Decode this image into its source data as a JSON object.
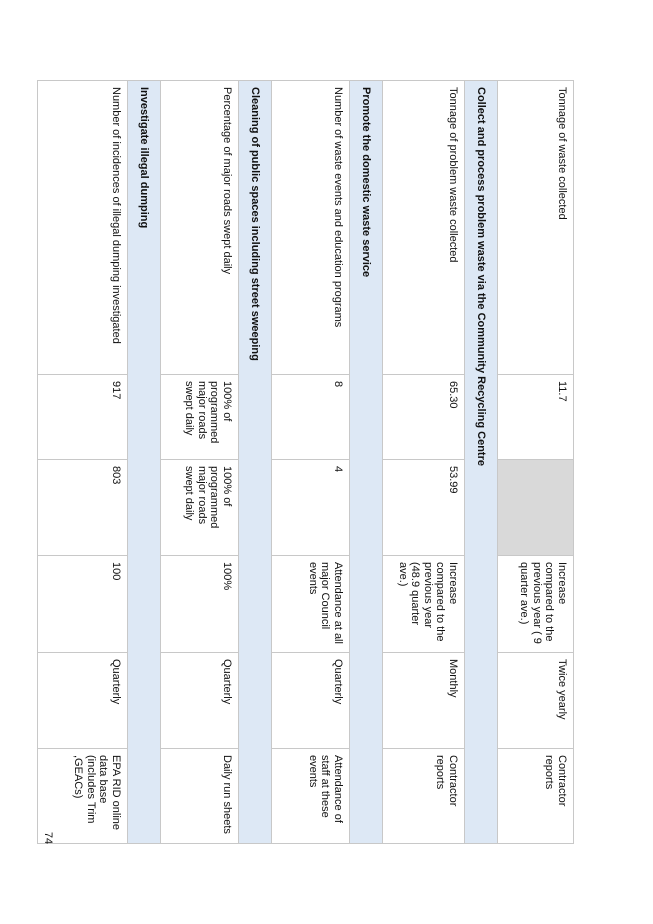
{
  "page_number": "74",
  "rows": [
    {
      "type": "data",
      "measure": "Tonnage of waste collected",
      "col1": "11.7",
      "col2": "",
      "col2_grey": true,
      "target": "Increase compared to the previous year ( 9 quarter ave.)",
      "frequency": "Twice yearly",
      "source": "Contractor reports"
    },
    {
      "type": "section",
      "title": "Collect and process problem waste via the Community Recycling Centre"
    },
    {
      "type": "data",
      "measure": "Tonnage of problem waste collected",
      "col1": "65.30",
      "col2": "53.99",
      "target": "Increase compared to the previous year (48.9 quarter ave.)",
      "frequency": "Monthly",
      "source": "Contractor reports"
    },
    {
      "type": "section",
      "title": "Promote the domestic waste service"
    },
    {
      "type": "data",
      "measure": "Number of waste events and education programs",
      "col1": "8",
      "col2": "4",
      "target": "Attendance at all major Council events",
      "frequency": "Quarterly",
      "source": "Attendance of staff at these events"
    },
    {
      "type": "section",
      "title": "Cleaning of public spaces including street sweeping"
    },
    {
      "type": "data",
      "measure": "Percentage of major roads swept daily",
      "col1": "100% of programmed major roads swept daily",
      "col2": "100% of programmed major roads swept daily",
      "target": "100%",
      "frequency": "Quarterly",
      "source": "Daily run sheets"
    },
    {
      "type": "section",
      "title": "Investigate illegal dumping"
    },
    {
      "type": "data",
      "measure": "Number of incidences of illegal dumping investigated",
      "col1": "917",
      "col2": "803",
      "target": "100",
      "frequency": "Quarterly",
      "source": "EPA RID online data base (includes Trim ,GEACs)"
    }
  ]
}
